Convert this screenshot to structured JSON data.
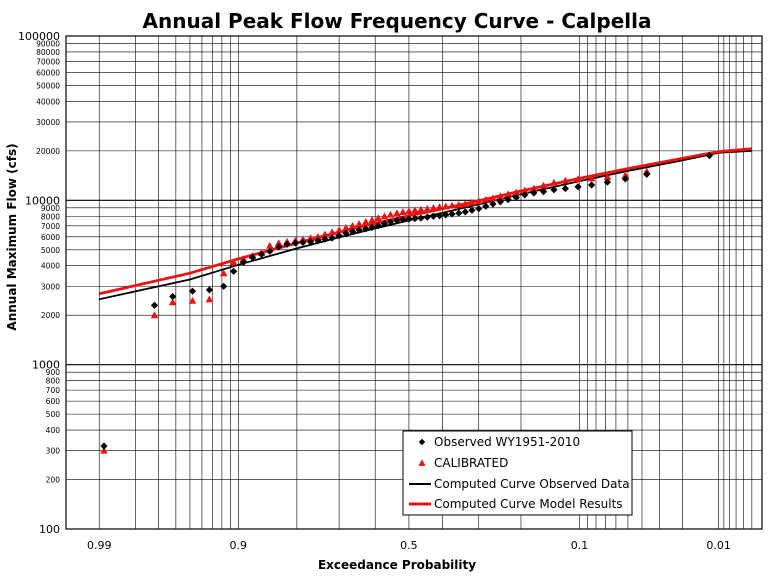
{
  "chart_data": {
    "type": "scatter",
    "title": "Annual Peak Flow Frequency Curve - Calpella",
    "xlabel": "Exceedance Probability",
    "ylabel": "Annual Maximum Flow (cfs)",
    "x_scale": "normal-probability (reversed)",
    "y_scale": "log",
    "ylim": [
      100,
      100000
    ],
    "xlim": [
      0.995,
      0.004
    ],
    "grid": true,
    "legend_position": "bottom-right",
    "y_ticks_major": [
      "100",
      "1000",
      "10000",
      "100000"
    ],
    "y_ticks_minor_upper": [
      "200",
      "300",
      "400",
      "500",
      "600",
      "700",
      "800",
      "900"
    ],
    "y_ticks_minor_lower": [
      "2000",
      "3000",
      "4000",
      "5000",
      "6000",
      "7000",
      "8000",
      "9000"
    ],
    "y_ticks_minor_top": [
      "20000",
      "30000",
      "40000",
      "50000",
      "60000",
      "70000",
      "80000",
      "90000"
    ],
    "x_ticks": [
      {
        "p": 0.99,
        "label": "0.99"
      },
      {
        "p": 0.9,
        "label": "0.9"
      },
      {
        "p": 0.5,
        "label": "0.5"
      },
      {
        "p": 0.1,
        "label": "0.1"
      },
      {
        "p": 0.01,
        "label": "0.01"
      }
    ],
    "series": [
      {
        "name": "Observed WY1951-2010",
        "kind": "marker",
        "marker": "diamond",
        "color": "#000000",
        "points": [
          [
            0.989,
            320
          ],
          [
            0.972,
            2300
          ],
          [
            0.962,
            2600
          ],
          [
            0.948,
            2800
          ],
          [
            0.933,
            2850
          ],
          [
            0.918,
            3000
          ],
          [
            0.906,
            3700
          ],
          [
            0.893,
            4200
          ],
          [
            0.88,
            4500
          ],
          [
            0.866,
            4700
          ],
          [
            0.852,
            4900
          ],
          [
            0.836,
            5200
          ],
          [
            0.82,
            5400
          ],
          [
            0.803,
            5500
          ],
          [
            0.787,
            5550
          ],
          [
            0.77,
            5600
          ],
          [
            0.753,
            5700
          ],
          [
            0.736,
            5800
          ],
          [
            0.718,
            5900
          ],
          [
            0.7,
            6100
          ],
          [
            0.682,
            6300
          ],
          [
            0.664,
            6450
          ],
          [
            0.646,
            6600
          ],
          [
            0.627,
            6700
          ],
          [
            0.609,
            6850
          ],
          [
            0.591,
            7000
          ],
          [
            0.573,
            7200
          ],
          [
            0.555,
            7400
          ],
          [
            0.536,
            7550
          ],
          [
            0.518,
            7650
          ],
          [
            0.5,
            7700
          ],
          [
            0.482,
            7750
          ],
          [
            0.464,
            7800
          ],
          [
            0.445,
            7900
          ],
          [
            0.427,
            8000
          ],
          [
            0.409,
            8050
          ],
          [
            0.391,
            8150
          ],
          [
            0.373,
            8250
          ],
          [
            0.354,
            8350
          ],
          [
            0.336,
            8500
          ],
          [
            0.318,
            8700
          ],
          [
            0.3,
            8900
          ],
          [
            0.282,
            9200
          ],
          [
            0.264,
            9500
          ],
          [
            0.246,
            9800
          ],
          [
            0.228,
            10100
          ],
          [
            0.21,
            10400
          ],
          [
            0.192,
            10800
          ],
          [
            0.174,
            11100
          ],
          [
            0.156,
            11300
          ],
          [
            0.138,
            11600
          ],
          [
            0.12,
            11800
          ],
          [
            0.102,
            12100
          ],
          [
            0.085,
            12400
          ],
          [
            0.068,
            12900
          ],
          [
            0.052,
            13500
          ],
          [
            0.037,
            14400
          ],
          [
            0.012,
            18700
          ]
        ]
      },
      {
        "name": "CALIBRATED",
        "kind": "marker",
        "marker": "triangle",
        "color": "#ee1111",
        "points": [
          [
            0.989,
            300
          ],
          [
            0.972,
            2000
          ],
          [
            0.962,
            2400
          ],
          [
            0.948,
            2450
          ],
          [
            0.933,
            2500
          ],
          [
            0.918,
            3600
          ],
          [
            0.906,
            4200
          ],
          [
            0.893,
            4400
          ],
          [
            0.88,
            4600
          ],
          [
            0.866,
            4800
          ],
          [
            0.852,
            5300
          ],
          [
            0.836,
            5500
          ],
          [
            0.82,
            5600
          ],
          [
            0.803,
            5700
          ],
          [
            0.787,
            5800
          ],
          [
            0.77,
            5900
          ],
          [
            0.753,
            6000
          ],
          [
            0.736,
            6200
          ],
          [
            0.718,
            6400
          ],
          [
            0.7,
            6600
          ],
          [
            0.682,
            6800
          ],
          [
            0.664,
            7000
          ],
          [
            0.646,
            7200
          ],
          [
            0.627,
            7400
          ],
          [
            0.609,
            7600
          ],
          [
            0.591,
            7800
          ],
          [
            0.573,
            8000
          ],
          [
            0.555,
            8200
          ],
          [
            0.536,
            8350
          ],
          [
            0.518,
            8500
          ],
          [
            0.5,
            8600
          ],
          [
            0.482,
            8700
          ],
          [
            0.464,
            8800
          ],
          [
            0.445,
            8900
          ],
          [
            0.427,
            9000
          ],
          [
            0.409,
            9100
          ],
          [
            0.391,
            9200
          ],
          [
            0.373,
            9300
          ],
          [
            0.354,
            9400
          ],
          [
            0.336,
            9500
          ],
          [
            0.318,
            9700
          ],
          [
            0.3,
            9900
          ],
          [
            0.282,
            10100
          ],
          [
            0.264,
            10300
          ],
          [
            0.246,
            10600
          ],
          [
            0.228,
            10900
          ],
          [
            0.21,
            11200
          ],
          [
            0.192,
            11500
          ],
          [
            0.174,
            11800
          ],
          [
            0.156,
            12300
          ],
          [
            0.138,
            12800
          ],
          [
            0.12,
            13200
          ],
          [
            0.102,
            13500
          ],
          [
            0.085,
            13600
          ],
          [
            0.068,
            13900
          ],
          [
            0.052,
            14200
          ],
          [
            0.037,
            15000
          ]
        ]
      },
      {
        "name": "Computed Curve Observed Data",
        "kind": "line",
        "color": "#000000",
        "points": [
          [
            0.99,
            2500
          ],
          [
            0.95,
            3300
          ],
          [
            0.9,
            4050
          ],
          [
            0.8,
            5100
          ],
          [
            0.7,
            5950
          ],
          [
            0.6,
            6750
          ],
          [
            0.5,
            7550
          ],
          [
            0.4,
            8400
          ],
          [
            0.3,
            9450
          ],
          [
            0.2,
            10900
          ],
          [
            0.1,
            13100
          ],
          [
            0.05,
            15100
          ],
          [
            0.02,
            17500
          ],
          [
            0.01,
            19500
          ],
          [
            0.005,
            20000
          ]
        ]
      },
      {
        "name": "Computed Curve Model Results",
        "kind": "line",
        "color": "#ee1111",
        "points": [
          [
            0.99,
            2700
          ],
          [
            0.95,
            3600
          ],
          [
            0.9,
            4400
          ],
          [
            0.8,
            5500
          ],
          [
            0.7,
            6400
          ],
          [
            0.6,
            7250
          ],
          [
            0.5,
            8050
          ],
          [
            0.4,
            8900
          ],
          [
            0.3,
            9950
          ],
          [
            0.2,
            11400
          ],
          [
            0.1,
            13600
          ],
          [
            0.05,
            15600
          ],
          [
            0.02,
            18000
          ],
          [
            0.01,
            19800
          ],
          [
            0.005,
            20600
          ]
        ]
      }
    ]
  }
}
